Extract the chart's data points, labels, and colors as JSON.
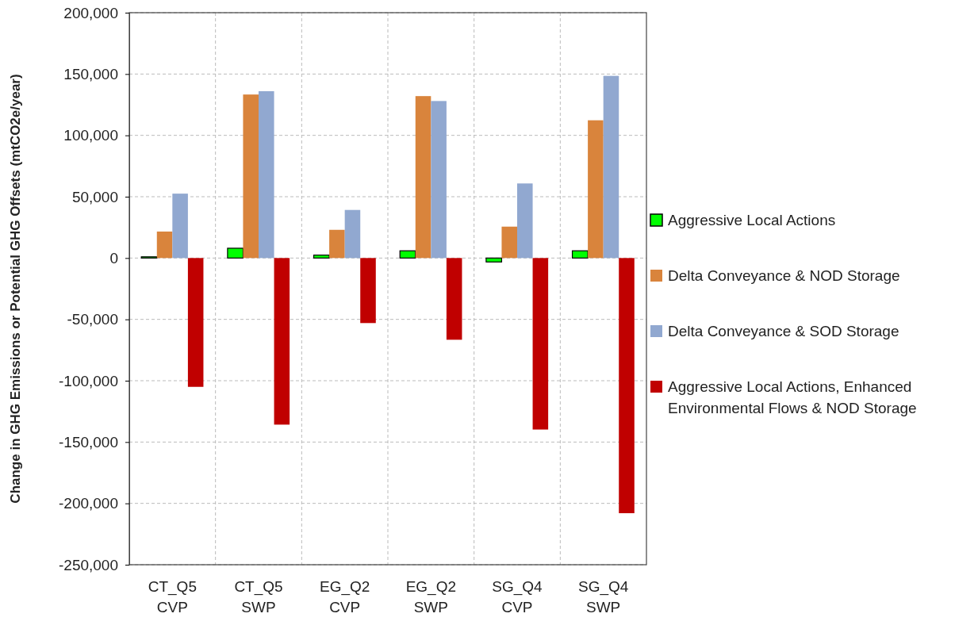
{
  "chart_data": {
    "type": "bar",
    "ylabel": "Change in GHG Emissions or Potential GHG Offsets  (mtCO2e/year)",
    "categories": [
      "CT_Q5\nCVP",
      "CT_Q5\nSWP",
      "EG_Q2\nCVP",
      "EG_Q2\nSWP",
      "SG_Q4\nCVP",
      "SG_Q4\nSWP"
    ],
    "series": [
      {
        "name": "Aggressive Local Actions",
        "color": "#00ff00",
        "values": [
          1000,
          8000,
          2400,
          5900,
          -3200,
          5900
        ]
      },
      {
        "name": "Delta Conveyance & NOD Storage",
        "color": "#d9843c",
        "values": [
          21600,
          133300,
          23000,
          132000,
          25600,
          112300
        ]
      },
      {
        "name": "Delta Conveyance & SOD Storage",
        "color": "#91a8d0",
        "values": [
          52500,
          136000,
          39200,
          128000,
          60800,
          148500
        ]
      },
      {
        "name": "Aggressive Local Actions, Enhanced Environmental Flows & NOD Storage",
        "color": "#c00000",
        "values": [
          -105000,
          -135800,
          -53000,
          -66600,
          -139800,
          -208000
        ]
      }
    ],
    "ylim": [
      -250000,
      200000
    ],
    "yticks": [
      {
        "value": -250000,
        "label": "-250,000"
      },
      {
        "value": -200000,
        "label": "-200,000"
      },
      {
        "value": -150000,
        "label": "-150,000"
      },
      {
        "value": -100000,
        "label": "-100,000"
      },
      {
        "value": -50000,
        "label": "-50,000"
      },
      0,
      {
        "value": 50000,
        "label": "50,000"
      },
      {
        "value": 100000,
        "label": "100,000"
      },
      {
        "value": 150000,
        "label": "150,000"
      },
      {
        "value": 200000,
        "label": "200,000"
      }
    ],
    "grid": true,
    "legend": "right"
  }
}
